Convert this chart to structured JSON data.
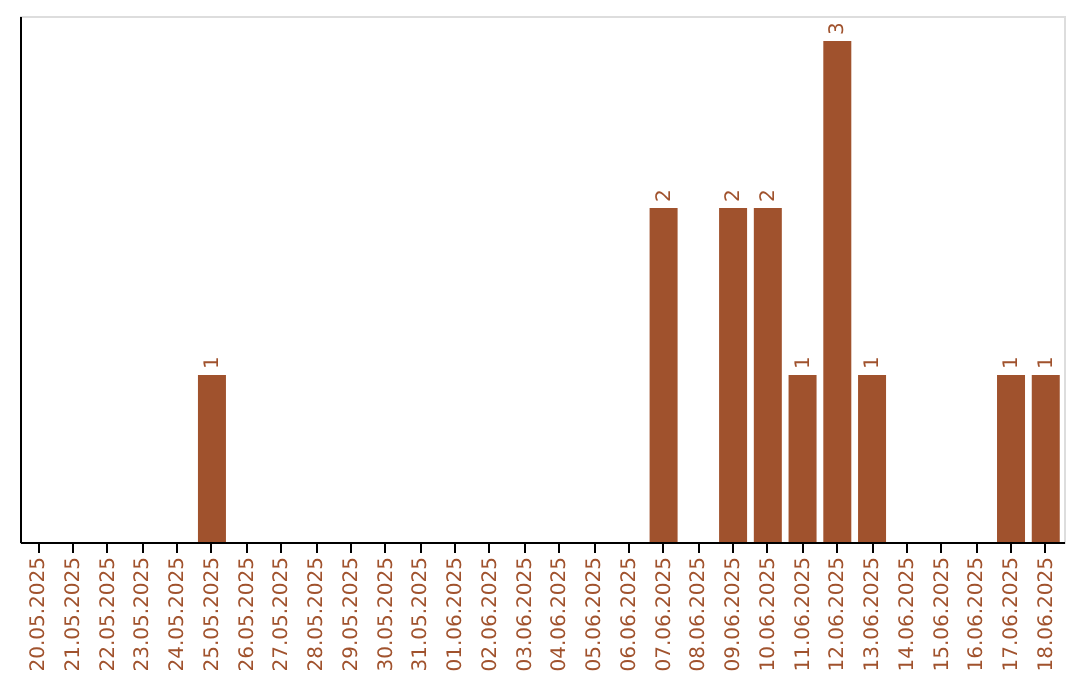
{
  "chart_data": {
    "type": "bar",
    "categories": [
      "20.05.2025",
      "21.05.2025",
      "22.05.2025",
      "23.05.2025",
      "24.05.2025",
      "25.05.2025",
      "26.05.2025",
      "27.05.2025",
      "28.05.2025",
      "29.05.2025",
      "30.05.2025",
      "31.05.2025",
      "01.06.2025",
      "02.06.2025",
      "03.06.2025",
      "04.06.2025",
      "05.06.2025",
      "06.06.2025",
      "07.06.2025",
      "08.06.2025",
      "09.06.2025",
      "10.06.2025",
      "11.06.2025",
      "12.06.2025",
      "13.06.2025",
      "14.06.2025",
      "15.06.2025",
      "16.06.2025",
      "17.06.2025",
      "18.06.2025"
    ],
    "values": [
      0,
      0,
      0,
      0,
      0,
      1,
      0,
      0,
      0,
      0,
      0,
      0,
      0,
      0,
      0,
      0,
      0,
      0,
      2,
      0,
      2,
      2,
      1,
      3,
      1,
      0,
      0,
      0,
      1,
      1
    ],
    "value_labels": [
      null,
      null,
      null,
      null,
      null,
      "1",
      null,
      null,
      null,
      null,
      null,
      null,
      null,
      null,
      null,
      null,
      null,
      null,
      "2",
      null,
      "2",
      "2",
      "1",
      "3",
      "1",
      null,
      null,
      null,
      "1",
      "1"
    ],
    "color": "#a0522d",
    "ylim": [
      0,
      3.15
    ],
    "grid": false,
    "tick_labels": "x"
  }
}
